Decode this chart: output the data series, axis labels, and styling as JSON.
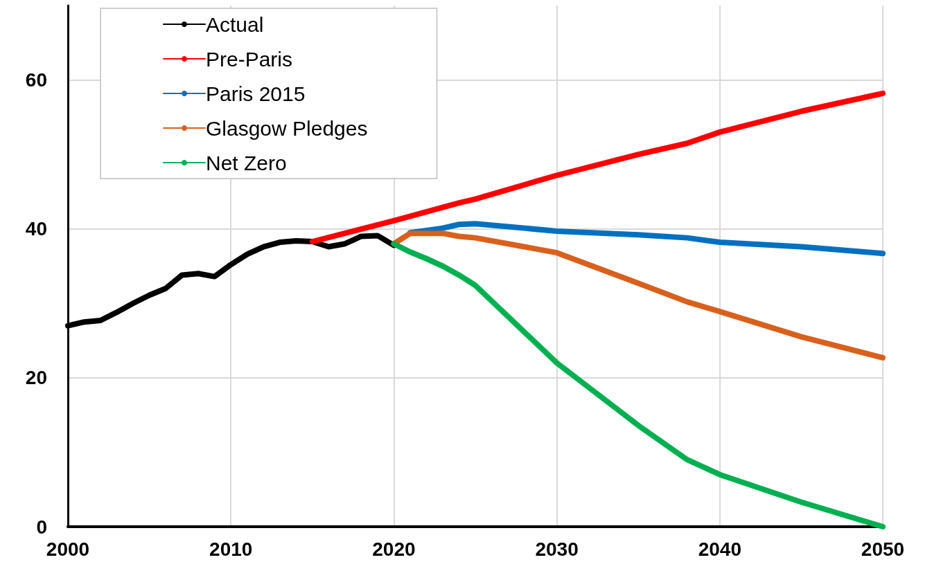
{
  "chart_data": {
    "type": "line",
    "xlim": [
      2000,
      2050
    ],
    "xticks": [
      2000,
      2010,
      2020,
      2030,
      2040,
      2050
    ],
    "ylim": [
      0,
      70
    ],
    "yticks": [
      0,
      20,
      40,
      60
    ],
    "grid": true,
    "legend": "top left",
    "marker": "none",
    "line_style": "solid",
    "series": [
      {
        "name": "Actual",
        "color": "#000000",
        "x": [
          2000,
          2001,
          2002,
          2003,
          2004,
          2005,
          2006,
          2007,
          2008,
          2009,
          2010,
          2011,
          2012,
          2013,
          2014,
          2015,
          2016,
          2017,
          2018,
          2019,
          2020
        ],
        "values": [
          27.0,
          27.5,
          27.7,
          28.8,
          30.0,
          31.1,
          32.0,
          33.8,
          34.0,
          33.6,
          35.2,
          36.6,
          37.6,
          38.2,
          38.4,
          38.3,
          37.6,
          38.0,
          39.0,
          39.1,
          37.8
        ]
      },
      {
        "name": "Pre-Paris",
        "color": "#ff0000",
        "x": [
          2015,
          2020,
          2024,
          2025,
          2030,
          2035,
          2038,
          2040,
          2045,
          2050
        ],
        "values": [
          38.3,
          41.1,
          43.5,
          44.0,
          47.2,
          50.0,
          51.5,
          53.0,
          55.8,
          58.2
        ]
      },
      {
        "name": "Paris 2015",
        "color": "#0070c0",
        "x": [
          2021,
          2023,
          2024,
          2025,
          2030,
          2035,
          2038,
          2040,
          2045,
          2050
        ],
        "values": [
          39.5,
          40.1,
          40.6,
          40.7,
          39.7,
          39.2,
          38.8,
          38.2,
          37.6,
          36.7
        ]
      },
      {
        "name": "Glasgow Pledges",
        "color": "#d9601c",
        "x": [
          2020,
          2021,
          2023,
          2024,
          2025,
          2030,
          2035,
          2038,
          2040,
          2045,
          2050
        ],
        "values": [
          38.0,
          39.4,
          39.4,
          39.0,
          38.8,
          36.8,
          32.7,
          30.2,
          28.9,
          25.5,
          22.7
        ]
      },
      {
        "name": "Net Zero",
        "color": "#00b050",
        "x": [
          2020,
          2021,
          2022,
          2023,
          2024,
          2025,
          2030,
          2035,
          2038,
          2040,
          2045,
          2050
        ],
        "values": [
          38.0,
          36.9,
          36.0,
          35.0,
          33.8,
          32.4,
          22.0,
          13.6,
          9.0,
          7.0,
          3.3,
          0
        ]
      }
    ]
  }
}
